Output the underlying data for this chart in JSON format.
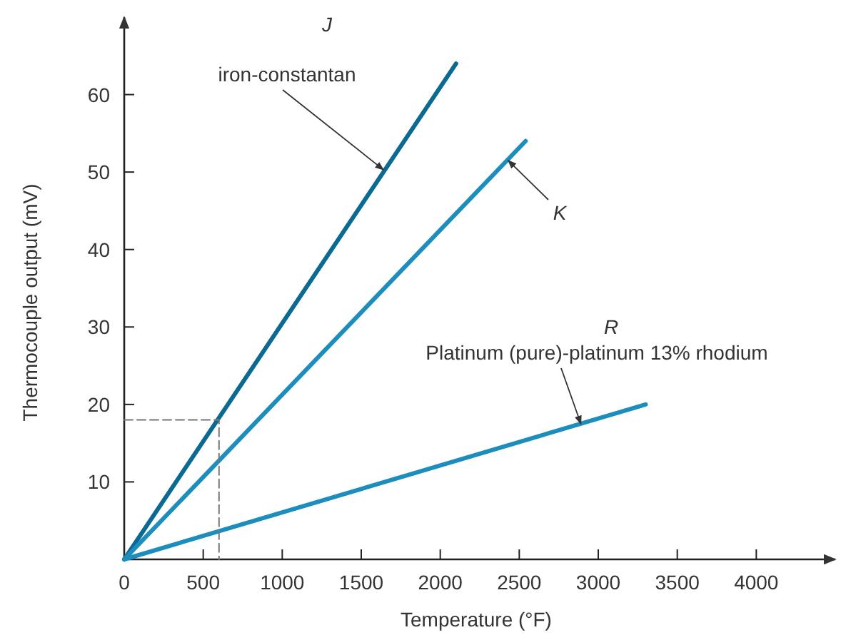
{
  "chart_data": {
    "type": "line",
    "xlabel": "Temperature (°F)",
    "ylabel": "Thermocouple output (mV)",
    "xlim": [
      0,
      4500
    ],
    "ylim": [
      0,
      70
    ],
    "xticks": [
      {
        "value": 0,
        "label": "0"
      },
      500,
      1000,
      1500,
      2000,
      2500,
      3000,
      3500,
      4000
    ],
    "yticks": [
      10,
      20,
      30,
      40,
      50,
      60
    ],
    "grid": false,
    "marker": "none",
    "series": [
      {
        "color": "#0b6a92",
        "x": [
          0,
          2100
        ],
        "values": [
          0,
          64
        ]
      },
      {
        "color": "#1c8dbd",
        "x": [
          0,
          2540
        ],
        "values": [
          0,
          54
        ]
      },
      {
        "color": "#1c8dbd",
        "x": [
          0,
          3300
        ],
        "values": [
          0,
          20
        ]
      },
      {
        "color": "#777777",
        "line_style": "dashed",
        "x": [
          0,
          600,
          600
        ],
        "values": [
          18,
          18,
          0
        ]
      }
    ],
    "annotations": [
      "J",
      {
        "text": "iron-constantan",
        "x": 1640,
        "y": 50.3
      },
      {
        "text": "K",
        "x": 2430,
        "y": 51.5
      },
      "R",
      {
        "text": "Platinum (pure)-platinum 13% rhodium",
        "x": 2890,
        "y": 17.5
      }
    ]
  }
}
